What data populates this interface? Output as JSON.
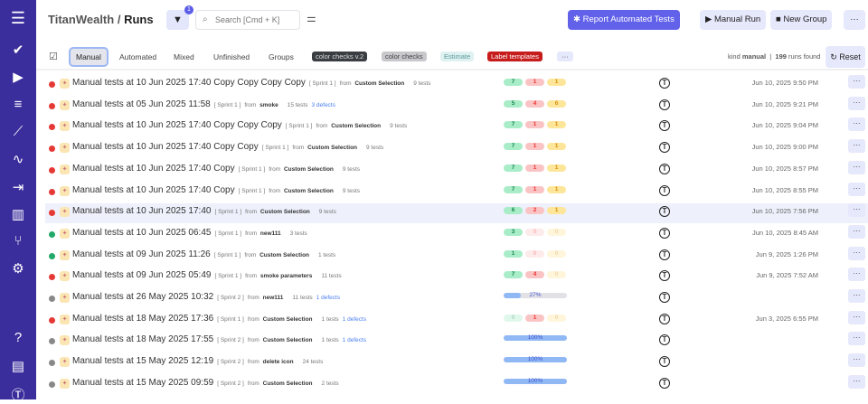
{
  "header": {
    "workspace": "TitanWealth",
    "separator": "/",
    "page": "Runs",
    "filter_count": "1",
    "search_placeholder": "Search [Cmd + K]",
    "report_btn": "Report Automated Tests",
    "manual_run_btn": "Manual Run",
    "new_group_btn": "New Group",
    "more": "···"
  },
  "tabs": [
    {
      "label": "Manual",
      "active": true
    },
    {
      "label": "Automated"
    },
    {
      "label": "Mixed"
    },
    {
      "label": "Unfinished"
    },
    {
      "label": "Groups"
    }
  ],
  "labels": [
    {
      "text": "color checks v.2",
      "bg": "#3a3d42",
      "fg": "#ddd"
    },
    {
      "text": "color checks",
      "bg": "#c8c8cc",
      "fg": "#444"
    },
    {
      "text": "Estimate",
      "bg": "#dff1f1",
      "fg": "#5a9a9a"
    },
    {
      "text": "Label templates",
      "bg": "#c61c1c",
      "fg": "#fff"
    }
  ],
  "labels_more": "···",
  "filter_summary": {
    "kind_label": "kind",
    "kind_value": "manual",
    "count": "199",
    "found_label": "runs found"
  },
  "reset": "Reset",
  "colors": {
    "failed": "#e53935",
    "passed": "#22a868",
    "pending": "#888",
    "sidebar": "#3a2d9c",
    "accent": "#6161ea"
  },
  "runs": [
    {
      "status": "failed",
      "title": "Manual tests at 10 Jun 2025 17:40 Copy Copy Copy Copy",
      "sprint": "[ Sprint 1 ]",
      "from": "from",
      "source": "Custom Selection",
      "tests": "9 tests",
      "defects": "",
      "passed": "7",
      "failed": "1",
      "skipped": "1",
      "date": "Jun 10, 2025 9:50 PM"
    },
    {
      "status": "failed",
      "title": "Manual tests at 05 Jun 2025 11:58",
      "sprint": "[ Sprint 1 ]",
      "from": "from",
      "source": "smoke",
      "tests": "15 tests",
      "defects": "3 defects",
      "passed": "5",
      "failed": "4",
      "skipped": "6",
      "date": "Jun 10, 2025 9:21 PM"
    },
    {
      "status": "failed",
      "title": "Manual tests at 10 Jun 2025 17:40 Copy Copy Copy",
      "sprint": "[ Sprint 1 ]",
      "from": "from",
      "source": "Custom Selection",
      "tests": "9 tests",
      "defects": "",
      "passed": "7",
      "failed": "1",
      "skipped": "1",
      "date": "Jun 10, 2025 9:04 PM"
    },
    {
      "status": "failed",
      "title": "Manual tests at 10 Jun 2025 17:40 Copy Copy",
      "sprint": "[ Sprint 1 ]",
      "from": "from",
      "source": "Custom Selection",
      "tests": "9 tests",
      "defects": "",
      "passed": "7",
      "failed": "1",
      "skipped": "1",
      "date": "Jun 10, 2025 9:00 PM"
    },
    {
      "status": "failed",
      "title": "Manual tests at 10 Jun 2025 17:40 Copy",
      "sprint": "[ Sprint 1 ]",
      "from": "from",
      "source": "Custom Selection",
      "tests": "9 tests",
      "defects": "",
      "passed": "7",
      "failed": "1",
      "skipped": "1",
      "date": "Jun 10, 2025 8:57 PM"
    },
    {
      "status": "failed",
      "title": "Manual tests at 10 Jun 2025 17:40 Copy",
      "sprint": "[ Sprint 1 ]",
      "from": "from",
      "source": "Custom Selection",
      "tests": "9 tests",
      "defects": "",
      "passed": "7",
      "failed": "1",
      "skipped": "1",
      "date": "Jun 10, 2025 8:55 PM"
    },
    {
      "status": "failed",
      "title": "Manual tests at 10 Jun 2025 17:40",
      "sprint": "[ Sprint 1 ]",
      "from": "from",
      "source": "Custom Selection",
      "tests": "9 tests",
      "defects": "",
      "passed": "6",
      "failed": "2",
      "skipped": "1",
      "date": "Jun 10, 2025 7:56 PM",
      "highlighted": true
    },
    {
      "status": "passed",
      "title": "Manual tests at 10 Jun 2025 06:45",
      "sprint": "[ Sprint 1 ]",
      "from": "from",
      "source": "new111",
      "tests": "3 tests",
      "defects": "",
      "passed": "3",
      "failed": "0",
      "skipped": "0",
      "date": "Jun 10, 2025 8:45 AM"
    },
    {
      "status": "passed",
      "title": "Manual tests at 09 Jun 2025 11:26",
      "sprint": "[ Sprint 1 ]",
      "from": "from",
      "source": "Custom Selection",
      "tests": "1 tests",
      "defects": "",
      "passed": "1",
      "failed": "0",
      "skipped": "0",
      "date": "Jun 9, 2025 1:26 PM"
    },
    {
      "status": "failed",
      "title": "Manual tests at 09 Jun 2025 05:49",
      "sprint": "[ Sprint 1 ]",
      "from": "from",
      "source": "smoke parameters",
      "tests": "11 tests",
      "defects": "",
      "passed": "7",
      "failed": "4",
      "skipped": "0",
      "date": "Jun 9, 2025 7:52 AM"
    },
    {
      "status": "pending",
      "title": "Manual tests at 26 May 2025 10:32",
      "sprint": "[ Sprint 2 ]",
      "from": "from",
      "source": "new111",
      "tests": "11 tests",
      "defects": "1 defects",
      "progress": "27%",
      "date": ""
    },
    {
      "status": "failed",
      "title": "Manual tests at 18 May 2025 17:36",
      "sprint": "[ Sprint 1 ]",
      "from": "from",
      "source": "Custom Selection",
      "tests": "1 tests",
      "defects": "1 defects",
      "passed": "0",
      "failed": "1",
      "skipped": "0",
      "date": "Jun 3, 2025 6:55 PM"
    },
    {
      "status": "pending",
      "title": "Manual tests at 18 May 2025 17:55",
      "sprint": "[ Sprint 2 ]",
      "from": "from",
      "source": "Custom Selection",
      "tests": "1 tests",
      "defects": "1 defects",
      "progress": "100%",
      "date": ""
    },
    {
      "status": "pending",
      "title": "Manual tests at 15 May 2025 12:19",
      "sprint": "[ Sprint 2 ]",
      "from": "from",
      "source": "delete icon",
      "tests": "24 tests",
      "defects": "",
      "progress": "100%",
      "date": ""
    },
    {
      "status": "pending",
      "title": "Manual tests at 15 May 2025 09:59",
      "sprint": "[ Sprint 2 ]",
      "from": "from",
      "source": "Custom Selection",
      "tests": "2 tests",
      "defects": "",
      "progress": "100%",
      "date": ""
    }
  ],
  "sidebar": [
    "menu-icon",
    "check-icon",
    "play-icon",
    "list-check-icon",
    "trend-icon",
    "pulse-icon",
    "import-icon",
    "chart-icon",
    "branch-icon",
    "gear-icon",
    "help-icon",
    "folder-icon",
    "avatar-icon"
  ]
}
